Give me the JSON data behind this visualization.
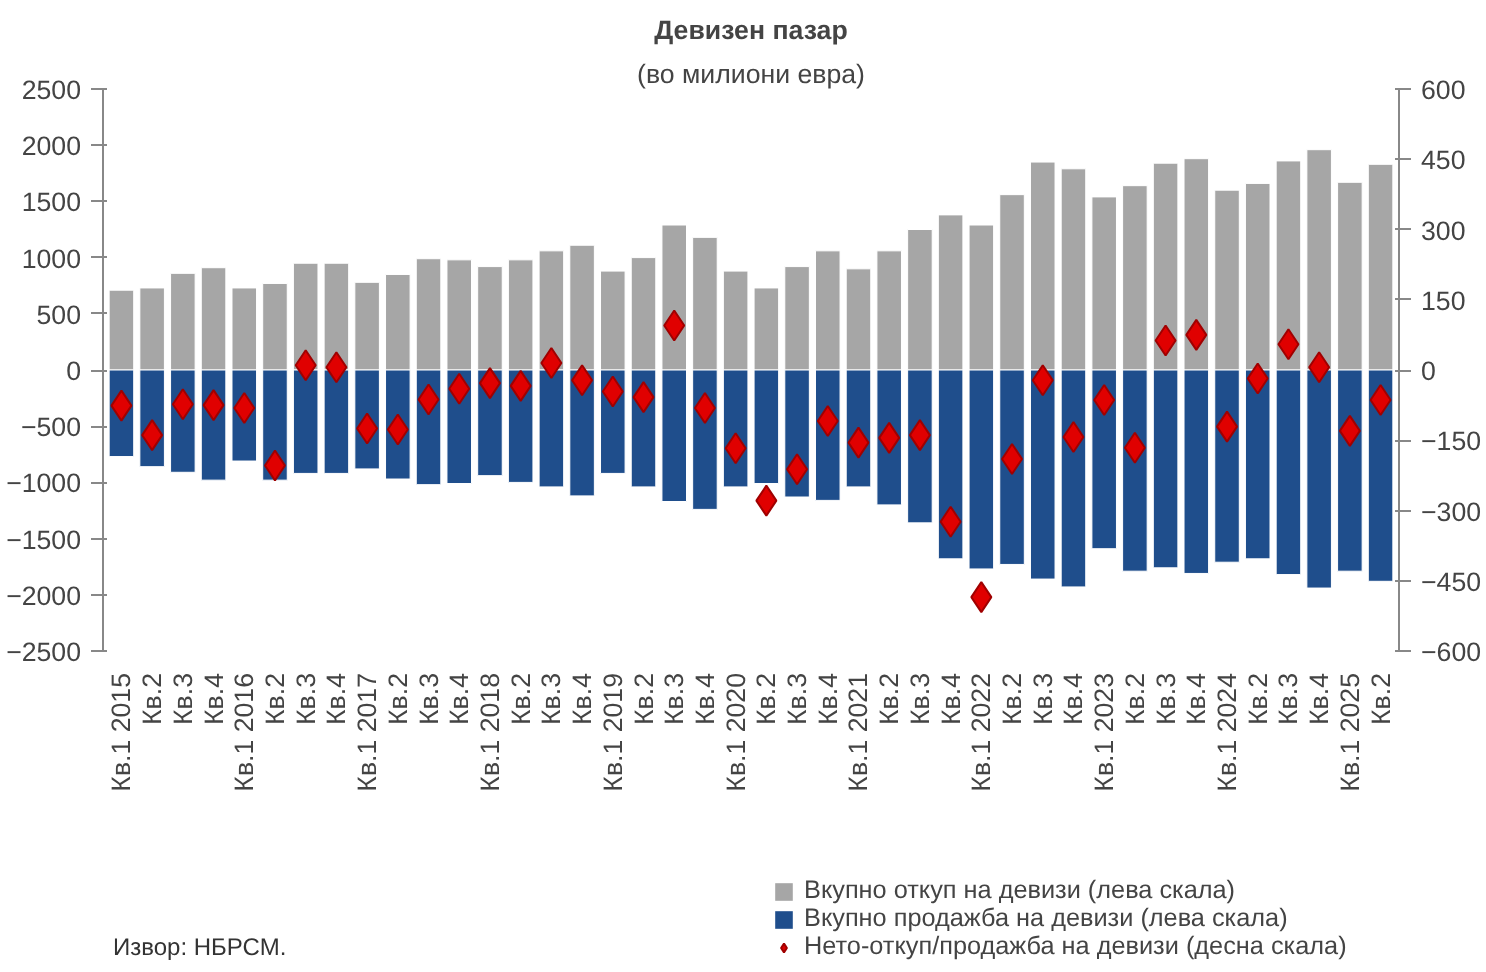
{
  "chart_data": {
    "type": "bar",
    "title": "Девизен пазар",
    "subtitle": "(во милиони евра)",
    "categories": [
      "Кв.1 2015",
      "Кв.2",
      "Кв.3",
      "Кв.4",
      "Кв.1 2016",
      "Кв.2",
      "Кв.3",
      "Кв.4",
      "Кв.1 2017",
      "Кв.2",
      "Кв.3",
      "Кв.4",
      "Кв.1 2018",
      "Кв.2",
      "Кв.3",
      "Кв.4",
      "Кв.1 2019",
      "Кв.2",
      "Кв.3",
      "Кв.4",
      "Кв.1 2020",
      "Кв.2",
      "Кв.3",
      "Кв.4",
      "Кв.1 2021",
      "Кв.2",
      "Кв.3",
      "Кв.4",
      "Кв.1 2022",
      "Кв.2",
      "Кв.3",
      "Кв.4",
      "Кв.1 2023",
      "Кв.2",
      "Кв.3",
      "Кв.4",
      "Кв.1 2024",
      "Кв.2",
      "Кв.3",
      "Кв.4",
      "Кв.1 2025",
      "Кв.2"
    ],
    "series": [
      {
        "name": "Вкупно откуп на девизи (лева скала)",
        "color": "#a6a6a6",
        "values": [
          710,
          730,
          860,
          910,
          730,
          770,
          950,
          950,
          780,
          850,
          990,
          980,
          920,
          980,
          1060,
          1110,
          880,
          1000,
          1290,
          1180,
          880,
          730,
          920,
          1060,
          900,
          1060,
          1250,
          1380,
          1290,
          1560,
          1850,
          1790,
          1540,
          1640,
          1840,
          1880,
          1600,
          1660,
          1860,
          1960,
          1670,
          1830
        ]
      },
      {
        "name": "Вкупно продажба на девизи (лева скала)",
        "color": "#1f4e8c",
        "values": [
          -770,
          -860,
          -910,
          -980,
          -810,
          -980,
          -920,
          -920,
          -880,
          -970,
          -1020,
          -1010,
          -940,
          -1000,
          -1040,
          -1120,
          -920,
          -1040,
          -1170,
          -1240,
          -1040,
          -1010,
          -1130,
          -1160,
          -1040,
          -1200,
          -1360,
          -1680,
          -1770,
          -1730,
          -1860,
          -1930,
          -1590,
          -1790,
          -1760,
          -1810,
          -1710,
          -1680,
          -1820,
          -1940,
          -1790,
          -1880
        ]
      },
      {
        "name": "Нето-откуп/продажба на девизи (десна скала)",
        "type": "scatter",
        "axis": "y2",
        "color": "#e00000",
        "values": [
          -76,
          -139,
          -73,
          -75,
          -81,
          -204,
          10,
          6,
          -125,
          -127,
          -63,
          -40,
          -28,
          -34,
          15,
          -22,
          -46,
          -58,
          95,
          -81,
          -167,
          -279,
          -212,
          -109,
          -155,
          -145,
          -139,
          -324,
          -485,
          -190,
          -22,
          -143,
          -64,
          -166,
          63,
          75,
          -121,
          -18,
          55,
          6,
          -130,
          -64
        ]
      }
    ],
    "ylim": [
      -2500,
      2500
    ],
    "yticks": [
      -2500,
      -2000,
      -1500,
      -1000,
      -500,
      0,
      500,
      1000,
      1500,
      2000,
      2500
    ],
    "y2lim": [
      -600,
      600
    ],
    "y2ticks": [
      -600,
      -450,
      -300,
      -150,
      0,
      150,
      300,
      450,
      600
    ],
    "stacked": true,
    "marker": "diamond",
    "legend": "bottom right",
    "grid": false,
    "annotations": [
      "Извор: НБРСМ."
    ]
  }
}
